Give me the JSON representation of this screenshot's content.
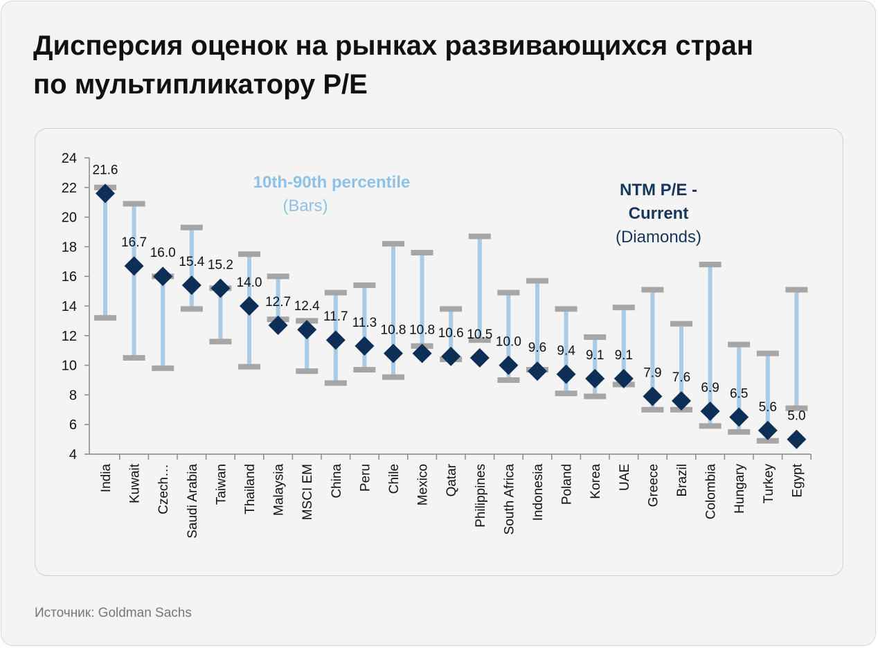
{
  "title_lines": [
    "Дисперсия оценок на рынках развивающихся стран",
    "по мультипликатору P/E"
  ],
  "source": "Источник: Goldman Sachs",
  "chart_data": {
    "type": "scatter",
    "annotations": {
      "bars": {
        "line1": "10th-90th percentile",
        "line2": "(Bars)"
      },
      "diamonds": {
        "line1": "NTM P/E -",
        "line2": "Current",
        "line3": "(Diamonds)"
      }
    },
    "categories": [
      "India",
      "Kuwait",
      "Czech…",
      "Saudi Arabia",
      "Taiwan",
      "Thailand",
      "Malaysia",
      "MSCI EM",
      "China",
      "Peru",
      "Chile",
      "Mexico",
      "Qatar",
      "Philippines",
      "South Africa",
      "Indonesia",
      "Poland",
      "Korea",
      "UAE",
      "Greece",
      "Brazil",
      "Colombia",
      "Hungary",
      "Turkey",
      "Egypt"
    ],
    "current_labels": [
      "21.6",
      "16.7",
      "16.0",
      "15.4",
      "15.2",
      "14.0",
      "12.7",
      "12.4",
      "11.7",
      "11.3",
      "10.8",
      "10.8",
      "10.6",
      "10.5",
      "10.0",
      "9.6",
      "9.4",
      "9.1",
      "9.1",
      "7.9",
      "7.6",
      "6.9",
      "6.5",
      "5.6",
      "5.0"
    ],
    "series": [
      {
        "name": "NTM P/E - Current",
        "values": [
          21.6,
          16.7,
          16.0,
          15.4,
          15.2,
          14.0,
          12.7,
          12.4,
          11.7,
          11.3,
          10.8,
          10.8,
          10.6,
          10.5,
          10.0,
          9.6,
          9.4,
          9.1,
          9.1,
          7.9,
          7.6,
          6.9,
          6.5,
          5.6,
          5.0
        ]
      },
      {
        "name": "10th percentile",
        "values": [
          13.2,
          10.5,
          9.8,
          13.8,
          11.6,
          9.9,
          13.1,
          9.6,
          8.8,
          9.7,
          9.2,
          11.3,
          10.4,
          11.7,
          9.0,
          9.7,
          8.1,
          7.9,
          8.7,
          7.0,
          7.0,
          5.9,
          5.5,
          4.9,
          7.1
        ]
      },
      {
        "name": "90th percentile",
        "values": [
          22.0,
          20.9,
          16.0,
          19.3,
          15.2,
          17.5,
          16.0,
          13.0,
          14.9,
          15.4,
          18.2,
          17.6,
          13.8,
          18.7,
          14.9,
          15.7,
          13.8,
          11.9,
          13.9,
          15.1,
          12.8,
          16.8,
          11.4,
          10.8,
          15.1
        ]
      }
    ],
    "yticks": [
      "4",
      "6",
      "8",
      "10",
      "12",
      "14",
      "16",
      "18",
      "20",
      "22",
      "24"
    ],
    "ylim": [
      4,
      24
    ],
    "colors": {
      "bar": "#a9cbe6",
      "cap": "#a6a6a6",
      "diamond": "#0d2f57",
      "bars_label": "#8ec1e6",
      "diamonds_label": "#17365d",
      "axis": "#888888"
    },
    "grid": false,
    "legend": "none"
  }
}
